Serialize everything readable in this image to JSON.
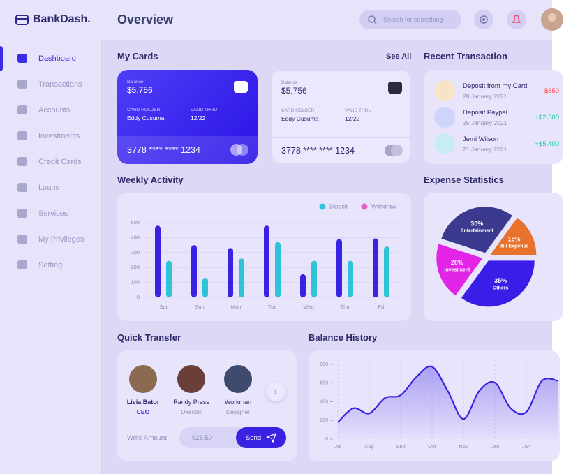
{
  "brand": "BankDash.",
  "header": {
    "title": "Overview",
    "search_placeholder": "Search for something"
  },
  "nav": {
    "items": [
      "Dashboard",
      "Transactions",
      "Accounts",
      "Investments",
      "Credit Cards",
      "Loans",
      "Services",
      "My Privileges",
      "Setting"
    ],
    "active": 0
  },
  "my_cards": {
    "title": "My Cards",
    "see_all": "See All",
    "cards": [
      {
        "theme": "dark",
        "balance_label": "Balance",
        "balance": "$5,756",
        "holder_label": "CARD HOLDER",
        "holder": "Eddy Cusuma",
        "valid_label": "VALID THRU",
        "valid": "12/22",
        "number": "3778 **** **** 1234"
      },
      {
        "theme": "light",
        "balance_label": "Balance",
        "balance": "$5,756",
        "holder_label": "CARD HOLDER",
        "holder": "Eddy Cusuma",
        "valid_label": "VALID THRU",
        "valid": "12/22",
        "number": "3778 **** **** 1234"
      }
    ]
  },
  "recent_transactions": {
    "title": "Recent Transaction",
    "items": [
      {
        "title": "Deposit from my Card",
        "date": "28 January 2021",
        "amount": "-$850",
        "color": "#ff4b4a",
        "icon_color": "#f7e3c6"
      },
      {
        "title": "Deposit Paypal",
        "date": "25 January 2021",
        "amount": "+$2,500",
        "color": "#16c99a",
        "icon_color": "#cfd4fb"
      },
      {
        "title": "Jemi Wilson",
        "date": "21 January 2021",
        "amount": "+$5,400",
        "color": "#16c99a",
        "icon_color": "#c8ecf1"
      }
    ]
  },
  "chart_data": [
    {
      "type": "bar",
      "title": "Weekly Activity",
      "categories": [
        "Sat",
        "Sun",
        "Mon",
        "Tue",
        "Wed",
        "Thu",
        "Fri"
      ],
      "series": [
        {
          "name": "Diposit",
          "color": "#2fc3d8",
          "legend_color": "#2fc3d8",
          "values": [
            245,
            130,
            260,
            370,
            245,
            245,
            340
          ]
        },
        {
          "name": "Withdraw",
          "color": "#3a22e2",
          "legend_color": "#e45fc0",
          "values": [
            480,
            350,
            330,
            480,
            155,
            390,
            395
          ]
        }
      ],
      "ylim": [
        0,
        500
      ],
      "yticks": [
        0,
        100,
        200,
        300,
        400,
        500
      ],
      "grid": true,
      "legend": "top-right"
    },
    {
      "type": "pie",
      "title": "Expense Statistics",
      "categories": [
        "Entertainment",
        "Bill Expense",
        "Others",
        "Investment"
      ],
      "values": [
        30,
        15,
        35,
        20
      ],
      "value_labels": [
        "30%",
        "15%",
        "35%",
        "20%"
      ],
      "colors": [
        "#3c3a8e",
        "#e8722b",
        "#3a1ee8",
        "#e224e6"
      ]
    },
    {
      "type": "line",
      "title": "Balance History",
      "categories": [
        "Jul",
        null,
        "Aug",
        null,
        "Sep",
        null,
        "Oct",
        null,
        "Nov",
        null,
        "Dec",
        null,
        "Jan",
        null,
        null
      ],
      "values": [
        180,
        330,
        275,
        440,
        470,
        665,
        775,
        515,
        215,
        515,
        605,
        330,
        290,
        625,
        625
      ],
      "color": "#3a22e2",
      "ylim": [
        0,
        800
      ],
      "yticks": [
        0,
        200,
        400,
        600,
        800
      ],
      "grid": true
    }
  ],
  "quick_transfer": {
    "title": "Quick Transfer",
    "people": [
      {
        "name": "Livia Bator",
        "role": "CEO",
        "color": "#8a6b52"
      },
      {
        "name": "Randy Press",
        "role": "Director",
        "color": "#6b3f37"
      },
      {
        "name": "Workman",
        "role": "Designer",
        "color": "#3e4b6e"
      }
    ],
    "selected": 0,
    "amount_label": "Write Amount",
    "amount": "525.50",
    "button": "Send"
  }
}
